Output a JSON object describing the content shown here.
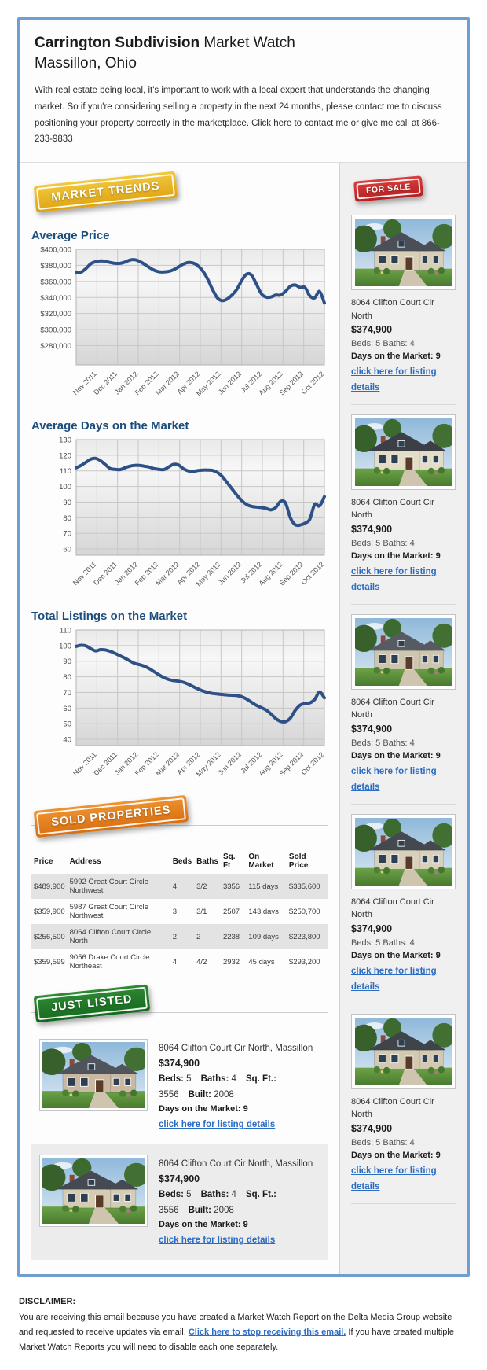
{
  "header": {
    "title_bold": "Carrington Subdivision",
    "title_rest": " Market Watch",
    "subtitle": "Massillon, Ohio",
    "intro": "With real estate being local, it's important to work with a local expert that understands the changing market. So if you're considering selling a property in the next 24 months, please contact me to discuss positioning your property correctly in the marketplace. Click here to contact me or give me call at 866-233-9833"
  },
  "badges": {
    "market_trends": "MARKET TRENDS",
    "for_sale": "FOR SALE",
    "sold_properties": "SOLD PROPERTIES",
    "just_listed": "JUST LISTED"
  },
  "colors": {
    "container_border": "#6f9fd0",
    "heading_blue": "#1c4e7d",
    "chart_line": "#2d5186",
    "link_blue": "#2b6cc4",
    "badge_yellow": "#e8b513",
    "badge_red": "#c52c2c",
    "badge_orange": "#e2821f",
    "badge_green": "#22782a",
    "sidebar_bg": "#f0f0f0"
  },
  "chart_data": [
    {
      "type": "line",
      "title": "Average Price",
      "x_labels": [
        "Nov 2011",
        "Dec 2011",
        "Jan 2012",
        "Feb 2012",
        "Mar 2012",
        "Apr 2012",
        "May 2012",
        "Jun 2012",
        "Jul 2012",
        "Aug 2012",
        "Sep 2012",
        "Oct 2012"
      ],
      "ytick_labels": [
        "$400,000",
        "$380,000",
        "$360,000",
        "$340,000",
        "$320,000",
        "$300,000",
        "$280,000"
      ],
      "ytick_values": [
        400000,
        380000,
        360000,
        340000,
        320000,
        300000,
        280000
      ],
      "ylim": [
        256000,
        400000
      ],
      "values": [
        371000,
        371500,
        376000,
        382000,
        384500,
        385500,
        385000,
        383500,
        382500,
        382500,
        384000,
        386500,
        387000,
        385000,
        381500,
        377500,
        374000,
        372000,
        371800,
        372500,
        374500,
        378000,
        381500,
        383500,
        383000,
        379500,
        373000,
        363000,
        350000,
        339500,
        336000,
        338000,
        343000,
        350000,
        361000,
        369000,
        368000,
        357000,
        345000,
        340500,
        340500,
        343000,
        343000,
        347500,
        354000,
        355500,
        352500,
        352500,
        342000,
        339500,
        347500,
        333000
      ]
    },
    {
      "type": "line",
      "title": "Average Days on the Market",
      "x_labels": [
        "Nov 2011",
        "Dec 2011",
        "Jan 2012",
        "Feb 2012",
        "Mar 2012",
        "Apr 2012",
        "May 2012",
        "Jun 2012",
        "Jul 2012",
        "Aug 2012",
        "Sep 2012",
        "Oct 2012"
      ],
      "ytick_labels": [
        "130",
        "120",
        "110",
        "100",
        "90",
        "80",
        "70",
        "60"
      ],
      "ytick_values": [
        130,
        120,
        110,
        100,
        90,
        80,
        70,
        60
      ],
      "ylim": [
        56,
        130
      ],
      "values": [
        112,
        113.5,
        115.5,
        117.5,
        118,
        116.5,
        114,
        111.5,
        111,
        110.8,
        112,
        113,
        113.5,
        113.5,
        113,
        112.5,
        111.5,
        111,
        110.8,
        112.5,
        114.2,
        113.8,
        111.5,
        110,
        109.7,
        110.2,
        110.5,
        110.5,
        110.3,
        109,
        106.5,
        102.5,
        98.5,
        94.5,
        91,
        88.5,
        87.3,
        86.8,
        86.5,
        86,
        85,
        86.5,
        90.5,
        89.5,
        80,
        75.5,
        75.3,
        76.5,
        79,
        88.5,
        87.5,
        93.5
      ]
    },
    {
      "type": "line",
      "title": "Total Listings on the Market",
      "x_labels": [
        "Nov 2011",
        "Dec 2011",
        "Jan 2012",
        "Feb 2012",
        "Mar 2012",
        "Apr 2012",
        "May 2012",
        "Jun 2012",
        "Jul 2012",
        "Aug 2012",
        "Sep 2012",
        "Oct 2012"
      ],
      "ytick_labels": [
        "110",
        "100",
        "90",
        "80",
        "70",
        "60",
        "50",
        "40"
      ],
      "ytick_values": [
        110,
        100,
        90,
        80,
        70,
        60,
        50,
        40
      ],
      "ylim": [
        36,
        110
      ],
      "values": [
        99.5,
        100.2,
        99.8,
        98,
        96.6,
        97.4,
        97.2,
        96.3,
        95,
        93.5,
        92,
        90.2,
        88.6,
        87.8,
        86.8,
        85.3,
        83.3,
        81.3,
        79.5,
        78.3,
        77.6,
        77.2,
        76.5,
        75.3,
        73.8,
        72.3,
        71,
        70,
        69.4,
        69,
        68.7,
        68.4,
        68.2,
        68,
        67.3,
        65.8,
        63.8,
        61.8,
        60.3,
        58.8,
        56.3,
        53.3,
        51.5,
        51.3,
        53.5,
        58.5,
        61.8,
        63,
        63.3,
        65.5,
        70.3,
        66.5
      ]
    }
  ],
  "sold_table": {
    "headers": [
      "Price",
      "Address",
      "Beds",
      "Baths",
      "Sq. Ft",
      "On Market",
      "Sold Price"
    ],
    "rows": [
      [
        "$489,900",
        "5992 Great Court Circle Northwest",
        "4",
        "3/2",
        "3356",
        "115 days",
        "$335,600"
      ],
      [
        "$359,900",
        "5987 Great Court Circle Northwest",
        "3",
        "3/1",
        "2507",
        "143 days",
        "$250,700"
      ],
      [
        "$256,500",
        "8064 Clifton Court Circle North",
        "2",
        "2",
        "2238",
        "109 days",
        "$223,800"
      ],
      [
        "$359,599",
        "9056 Drake Court Circle Northeast",
        "4",
        "4/2",
        "2932",
        "45 days",
        "$293,200"
      ]
    ]
  },
  "for_sale_listings": [
    {
      "address": "8064 Clifton Court Cir North",
      "price": "$374,900",
      "beds_baths": "Beds: 5 Baths: 4",
      "days": "Days on the Market: 9",
      "link": "click here for listing details"
    },
    {
      "address": "8064 Clifton Court Cir North",
      "price": "$374,900",
      "beds_baths": "Beds: 5 Baths: 4",
      "days": "Days on the Market: 9",
      "link": "click here for listing details"
    },
    {
      "address": "8064 Clifton Court Cir North",
      "price": "$374,900",
      "beds_baths": "Beds: 5 Baths: 4",
      "days": "Days on the Market: 9",
      "link": "click here for listing details"
    },
    {
      "address": "8064 Clifton Court Cir North",
      "price": "$374,900",
      "beds_baths": "Beds: 5 Baths: 4",
      "days": "Days on the Market: 9",
      "link": "click here for listing details"
    },
    {
      "address": "8064 Clifton Court Cir North",
      "price": "$374,900",
      "beds_baths": "Beds: 5 Baths: 4",
      "days": "Days on the Market: 9",
      "link": "click here for listing details"
    }
  ],
  "just_listed_listings": [
    {
      "address": "8064 Clifton Court Cir North, Massillon",
      "price": "$374,900",
      "specs": [
        [
          "Beds:",
          "5"
        ],
        [
          "Baths:",
          "4"
        ],
        [
          "Sq. Ft.:",
          "3556"
        ],
        [
          "Built:",
          "2008"
        ]
      ],
      "days": "Days on the Market: 9",
      "link": "click here for listing details"
    },
    {
      "address": "8064 Clifton Court Cir North, Massillon",
      "price": "$374,900",
      "specs": [
        [
          "Beds:",
          "5"
        ],
        [
          "Baths:",
          "4"
        ],
        [
          "Sq. Ft.:",
          "3556"
        ],
        [
          "Built:",
          "2008"
        ]
      ],
      "days": "Days on the Market: 9",
      "link": "click here for listing details"
    }
  ],
  "disclaimer": {
    "heading": "DISCLAIMER:",
    "pre": "You are receiving this email because you have created a Market Watch Report on the Delta Media Group website and requested to receive updates via email. ",
    "link": "Click here to stop receiving this email.",
    "post": " If you have created multiple Market Watch Reports you will need to disable each one separately."
  }
}
